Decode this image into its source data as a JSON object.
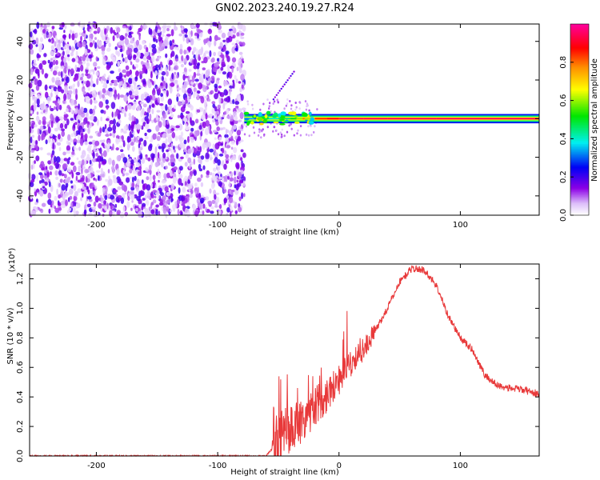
{
  "title": "GN02.2023.240.19.27.R24",
  "chart_data": [
    {
      "type": "heatmap",
      "xlabel": "Height of straight line (km)",
      "ylabel": "Frequency (Hz)",
      "xlim": [
        -255,
        165
      ],
      "ylim": [
        -50,
        49
      ],
      "xticks": [
        -200,
        -100,
        0,
        100
      ],
      "yticks": [
        -40,
        -20,
        0,
        20,
        40
      ],
      "colorbar": {
        "label": "Normalized spectral amplitude",
        "range": [
          0,
          1
        ],
        "ticks": [
          "0.0",
          "0.2",
          "0.4",
          "0.6",
          "0.8"
        ],
        "colormap": "rainbow: white-violet-blue-cyan-green-yellow-orange-red-magenta"
      },
      "noise_region_x": [
        -255,
        -78
      ],
      "signal_trace": {
        "frequency_hz": 0,
        "x": [
          -78,
          -70,
          -60,
          -50,
          -40,
          -35,
          -30,
          -25,
          -20,
          -10,
          0,
          20,
          40,
          80,
          165
        ],
        "intensity": [
          0.35,
          0.3,
          0.4,
          0.45,
          0.5,
          0.6,
          0.8,
          0.7,
          0.85,
          0.9,
          0.95,
          0.95,
          0.95,
          0.95,
          0.95
        ]
      }
    },
    {
      "type": "line",
      "xlabel": "Height of straight line (km)",
      "ylabel": "SNR (10 * v/v)",
      "y_multiplier": "(x10⁴)",
      "xlim": [
        -255,
        165
      ],
      "ylim": [
        0,
        1.3
      ],
      "xticks": [
        -200,
        -100,
        0,
        100
      ],
      "yticks": [
        "0.0",
        "0.2",
        "0.4",
        "0.6",
        "0.8",
        "1.0",
        "1.2"
      ],
      "color": "#e8393a",
      "series": [
        {
          "x": [
            -255,
            -200,
            -150,
            -100,
            -60,
            -55,
            -50,
            -40,
            -30,
            -20,
            -10,
            0,
            10,
            20,
            30,
            40,
            50,
            60,
            70,
            80,
            90,
            100,
            110,
            120,
            130,
            140,
            150,
            160,
            165
          ],
          "y": [
            0.0,
            0.0,
            0.0,
            0.0,
            0.0,
            0.05,
            0.12,
            0.18,
            0.25,
            0.33,
            0.42,
            0.52,
            0.62,
            0.72,
            0.85,
            1.0,
            1.18,
            1.27,
            1.26,
            1.16,
            0.95,
            0.8,
            0.72,
            0.55,
            0.48,
            0.46,
            0.45,
            0.43,
            0.42
          ]
        }
      ]
    }
  ]
}
